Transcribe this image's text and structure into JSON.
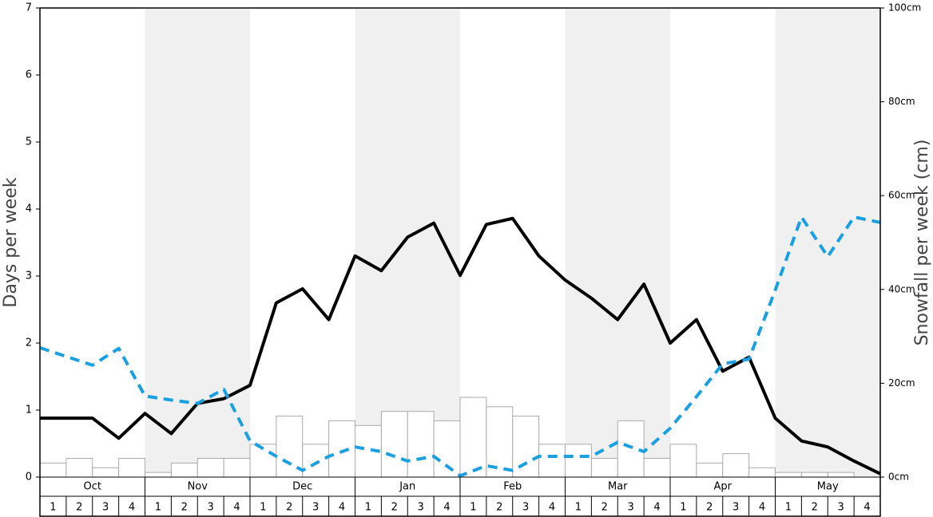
{
  "chart_data": {
    "type": "bar",
    "ylabel": "Days per week",
    "y2label": "Snowfall per week (cm)",
    "months": [
      "Oct",
      "Nov",
      "Dec",
      "Jan",
      "Feb",
      "Mar",
      "Apr",
      "May"
    ],
    "week_labels": [
      "1",
      "2",
      "3",
      "4"
    ],
    "ylim": [
      0,
      7
    ],
    "yticks": [
      0,
      1,
      2,
      3,
      4,
      5,
      6,
      7
    ],
    "y2lim": [
      0,
      100
    ],
    "y2ticks": [
      {
        "value": 0,
        "label": "0cm"
      },
      {
        "value": 20,
        "label": "20cm"
      },
      {
        "value": 40,
        "label": "40cm"
      },
      {
        "value": 60,
        "label": "60cm"
      },
      {
        "value": 80,
        "label": "80cm"
      },
      {
        "value": 100,
        "label": "100cm"
      }
    ],
    "bars": {
      "axis": "y2",
      "color": "#ffffff",
      "edge_color": "#aaaaaa",
      "values": [
        3,
        4,
        2,
        4,
        1,
        3,
        4,
        4,
        7,
        13,
        7,
        12,
        11,
        14,
        14,
        12,
        17,
        15,
        13,
        7,
        7,
        4,
        12,
        4,
        7,
        3,
        5,
        2,
        1,
        1,
        1,
        0
      ]
    },
    "lines": [
      {
        "color": "#000000",
        "dashed": false,
        "values": [
          0.88,
          0.88,
          0.88,
          0.58,
          0.95,
          0.65,
          1.1,
          1.17,
          1.37,
          2.6,
          2.81,
          2.35,
          3.3,
          3.08,
          3.58,
          3.79,
          3.01,
          3.77,
          3.86,
          3.3,
          2.94,
          2.67,
          2.35,
          2.88,
          2.0,
          2.35,
          1.58,
          1.79,
          0.88,
          0.54,
          0.45,
          0.24,
          0.05
        ]
      },
      {
        "color": "#1a9fe0",
        "dashed": true,
        "values": [
          1.93,
          1.8,
          1.67,
          1.92,
          1.21,
          1.15,
          1.1,
          1.31,
          0.54,
          0.31,
          0.1,
          0.31,
          0.45,
          0.38,
          0.24,
          0.31,
          0.02,
          0.17,
          0.1,
          0.31,
          0.31,
          0.31,
          0.52,
          0.38,
          0.73,
          1.2,
          1.69,
          1.76,
          2.79,
          3.88,
          3.29,
          3.88,
          3.8
        ]
      }
    ]
  }
}
